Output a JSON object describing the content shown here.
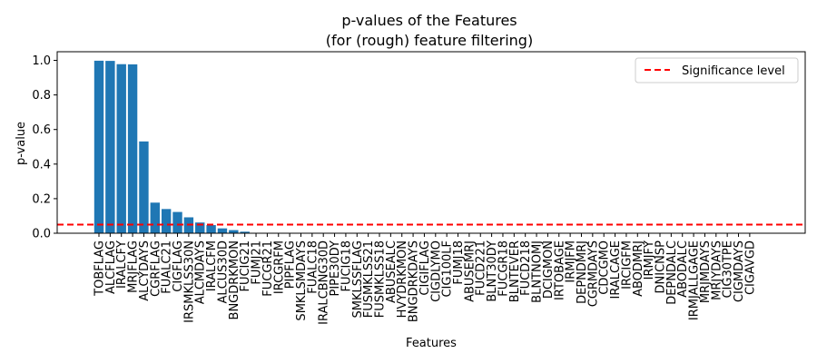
{
  "chart_data": {
    "type": "bar",
    "title": "p-values of the Features",
    "subtitle": "(for (rough) feature filtering)",
    "xlabel": "Features",
    "ylabel": "p-value",
    "ylim": [
      0,
      1.05
    ],
    "yticks": [
      "0.0",
      "0.2",
      "0.4",
      "0.6",
      "0.8",
      "1.0"
    ],
    "bar_color": "#1f77b4",
    "categories": [
      "TOBFLAG",
      "ALCFLAG",
      "IRALCFY",
      "MRJFLAG",
      "ALCYDAYS",
      "CGRFLAG",
      "FUALC21",
      "CIGFLAG",
      "IRSMKLSS30N",
      "ALCMDAYS",
      "IRALCFM",
      "ALCUS30D",
      "BNGDRKMON",
      "FUCIG21",
      "FUMJ21",
      "FUCGR21",
      "IRCGRFM",
      "PIPFLAG",
      "SMKLSMDAYS",
      "FUALC18",
      "IRALCBNG30D",
      "PIPE30DY",
      "FUCIG18",
      "SMKLSSFLAG",
      "FUSMKLSS21",
      "FUSMKLSS18",
      "ABUSEALC",
      "HVYDRKMON",
      "BNGDRKDAYS",
      "CIGIFLAG",
      "CIGDLYMO",
      "CIG100LF",
      "FUMJ18",
      "ABUSEMRJ",
      "FUCD221",
      "BLNT30DY",
      "FUCGR18",
      "BLNTEVER",
      "FUCD218",
      "BLNTNOMJ",
      "DCIGMON",
      "IRTOBAGE",
      "IRMJFM",
      "DEPNDMRJ",
      "CGRMDAYS",
      "CDCGMO",
      "IRALCAGE",
      "IRCIGFM",
      "ABODMRJ",
      "IRMJFY",
      "DNICNSP",
      "DEPNDALC",
      "ABODALC",
      "IRMJALLGAGE",
      "MRJMDAYS",
      "MRJYDAYS",
      "CIG30TPE",
      "CIGMDAYS",
      "CIGAVGD"
    ],
    "values": [
      0.998,
      0.997,
      0.978,
      0.977,
      0.531,
      0.177,
      0.14,
      0.123,
      0.092,
      0.062,
      0.047,
      0.028,
      0.018,
      0.009,
      0.002,
      0.001,
      0.001,
      0.001,
      0.001,
      0.001,
      0.001,
      0.001,
      0.001,
      0.001,
      0.001,
      0.001,
      0.001,
      0.001,
      0.001,
      0.001,
      0.001,
      0.001,
      0.001,
      0.001,
      0.001,
      0.001,
      0.001,
      0.001,
      0.001,
      0.001,
      0.001,
      0.001,
      0.001,
      0.001,
      0.001,
      0.001,
      0.001,
      0.001,
      0.001,
      0.001,
      0.001,
      0.001,
      0.001,
      0.001,
      0.001,
      0.001,
      0.001,
      0.001,
      0.001
    ],
    "threshold": 0.05,
    "threshold_color": "#ff0000",
    "legend": {
      "label": "Significance level",
      "placement": "top-right"
    },
    "grid": false
  }
}
